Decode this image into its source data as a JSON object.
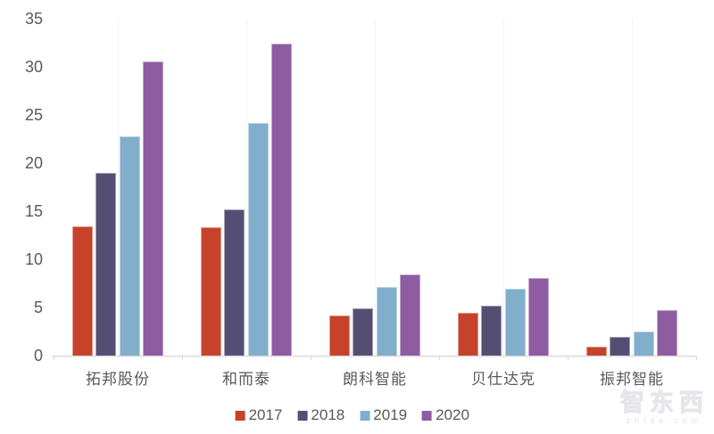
{
  "chart_data": {
    "type": "bar",
    "title": "",
    "xlabel": "",
    "ylabel": "",
    "categories": [
      "拓邦股份",
      "和而泰",
      "朗科智能",
      "贝仕达克",
      "振邦智能"
    ],
    "series": [
      {
        "name": "2017",
        "color": "#C7422B",
        "values": [
          13.4,
          13.3,
          4.2,
          4.4,
          0.9
        ]
      },
      {
        "name": "2018",
        "color": "#554E74",
        "values": [
          19.0,
          15.2,
          4.9,
          5.2,
          1.9
        ]
      },
      {
        "name": "2019",
        "color": "#81AECA",
        "values": [
          22.8,
          24.2,
          7.1,
          6.9,
          2.5
        ]
      },
      {
        "name": "2020",
        "color": "#8E5CA0",
        "values": [
          30.6,
          32.4,
          8.4,
          8.1,
          4.7
        ]
      }
    ],
    "ylim": [
      0,
      35
    ],
    "y_ticks": [
      0,
      5,
      10,
      15,
      20,
      25,
      30,
      35
    ],
    "grid": "faint vertical lines at category centers",
    "legend_position": "bottom-center",
    "axis_color": "#D9D9D9",
    "tick_label_color": "#595959"
  },
  "watermark": {
    "logo": "智东西",
    "url": "zhidx.com"
  }
}
